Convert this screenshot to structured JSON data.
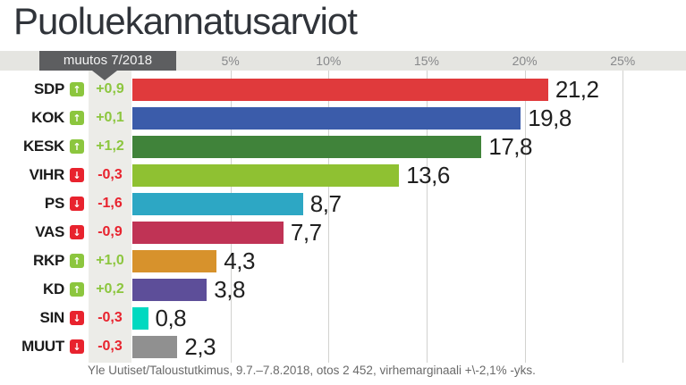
{
  "title": "Puoluekannatusarviot",
  "header": {
    "change_label": "muutos 7/2018",
    "ticks": [
      "5%",
      "10%",
      "15%",
      "20%",
      "25%"
    ]
  },
  "icons": {
    "up": "↑",
    "down": "↓"
  },
  "colors": {
    "positive": "#8cc63e",
    "negative": "#e8232e",
    "band": "#e5e5e1",
    "band_box": "#5d5e60",
    "strip": "#ecece8",
    "gridline": "#d2d2cf"
  },
  "chart_data": {
    "type": "bar",
    "orientation": "horizontal",
    "title": "Puoluekannatusarviot",
    "categories": [
      "SDP",
      "KOK",
      "KESK",
      "VIHR",
      "PS",
      "VAS",
      "RKP",
      "KD",
      "SIN",
      "MUUT"
    ],
    "values": [
      21.2,
      19.8,
      17.8,
      13.6,
      8.7,
      7.7,
      4.3,
      3.8,
      0.8,
      2.3
    ],
    "value_labels": [
      "21,2",
      "19,8",
      "17,8",
      "13,6",
      "8,7",
      "7,7",
      "4,3",
      "3,8",
      "0,8",
      "2,3"
    ],
    "changes": [
      0.9,
      0.1,
      1.2,
      -0.3,
      -1.6,
      -0.9,
      1.0,
      0.2,
      -0.3,
      -0.3
    ],
    "change_labels": [
      "+0,9",
      "+0,1",
      "+1,2",
      "-0,3",
      "-1,6",
      "-0,9",
      "+1,0",
      "+0,2",
      "-0,3",
      "-0,3"
    ],
    "bar_colors": [
      "#e03a3c",
      "#3b5caa",
      "#40833a",
      "#8fc132",
      "#2da7c4",
      "#c03355",
      "#d7922c",
      "#5d4e99",
      "#00d9c0",
      "#909090"
    ],
    "xlim": [
      0,
      25
    ],
    "x_ticks_percent": [
      5,
      10,
      15,
      20,
      25
    ],
    "grid": true,
    "legend": false
  },
  "footer": "Yle Uutiset/Taloustutkimus, 9.7.–7.8.2018, otos 2 452, virhemarginaali +\\-2,1% -yks."
}
